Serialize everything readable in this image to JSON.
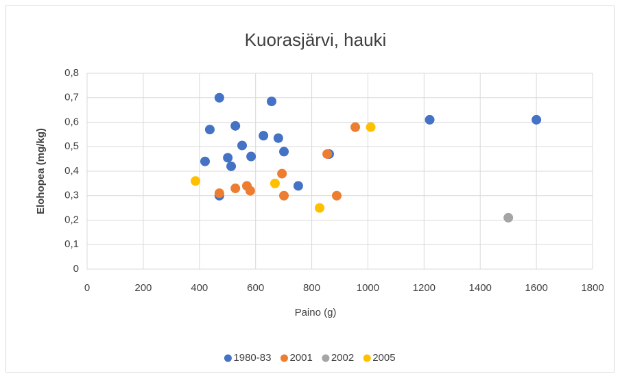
{
  "chart_data": {
    "type": "scatter",
    "title": "Kuorasjärvi, hauki",
    "x_label": "Paino (g)",
    "y_label": "Elohopea (mg/kg)",
    "xlim": [
      0,
      1800
    ],
    "xticks": [
      0,
      200,
      400,
      600,
      800,
      1000,
      1200,
      1400,
      1600,
      1800
    ],
    "ylim": [
      0,
      0.8
    ],
    "yticks": [
      0,
      {
        "value": 0.1,
        "label": "0,1"
      },
      {
        "value": 0.2,
        "label": "0,2"
      },
      {
        "value": 0.3,
        "label": "0,3"
      },
      {
        "value": 0.4,
        "label": "0,4"
      },
      {
        "value": 0.5,
        "label": "0,5"
      },
      {
        "value": 0.6,
        "label": "0,6"
      },
      {
        "value": 0.7,
        "label": "0,7"
      },
      {
        "value": 0.8,
        "label": "0,8"
      }
    ],
    "grid": true,
    "legend": "bottom",
    "series": [
      {
        "name": "1980-83",
        "color": "#4472c4",
        "x": [
          471,
          657,
          437,
          528,
          628,
          552,
          681,
          701,
          501,
          584,
          420,
          513,
          471,
          752,
          862,
          1220,
          1600
        ],
        "values": [
          0.7,
          0.685,
          0.57,
          0.585,
          0.545,
          0.505,
          0.535,
          0.48,
          0.455,
          0.46,
          0.44,
          0.42,
          0.3,
          0.34,
          0.47,
          0.61,
          0.61
        ]
      },
      {
        "name": "2001",
        "color": "#ed7d31",
        "x": [
          471,
          528,
          569,
          581,
          694,
          701,
          855,
          889,
          955
        ],
        "values": [
          0.31,
          0.33,
          0.34,
          0.32,
          0.39,
          0.3,
          0.47,
          0.3,
          0.58
        ]
      },
      {
        "name": "2002",
        "color": "#a5a5a5",
        "x": [
          1500
        ],
        "values": [
          0.21
        ]
      },
      {
        "name": "2005",
        "color": "#ffc000",
        "x": [
          386,
          669,
          828,
          1010
        ],
        "values": [
          0.36,
          0.35,
          0.25,
          0.58
        ]
      }
    ]
  }
}
